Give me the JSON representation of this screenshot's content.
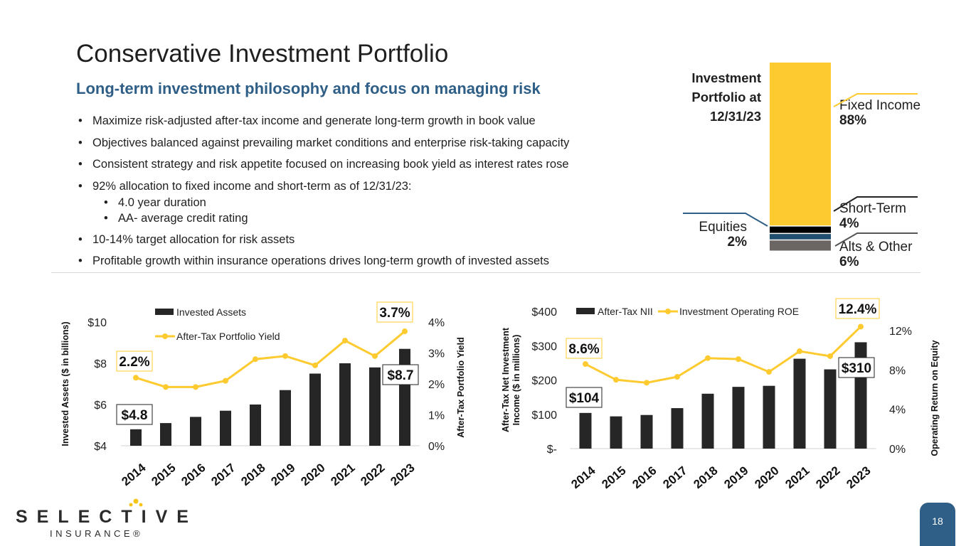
{
  "title": "Conservative Investment Portfolio",
  "subtitle": "Long-term investment philosophy and focus on managing risk",
  "bullets": [
    "Maximize risk-adjusted after-tax income and generate long-term growth in book value",
    "Objectives balanced against prevailing market conditions and enterprise risk-taking capacity",
    "Consistent strategy and risk appetite focused on increasing book yield as interest rates rose",
    "92% allocation to fixed income and short-term as of 12/31/23:",
    "10-14% target allocation for risk assets",
    "Profitable growth within insurance operations drives long-term growth of invested assets"
  ],
  "sub_bullets": [
    "4.0 year duration",
    "AA- average credit rating"
  ],
  "page_number": "18",
  "logo": {
    "line1": "SELECTIVE",
    "line2": "INSURANCE®",
    "dot_color": "#f5c518"
  },
  "colors": {
    "yellow": "#fdcb2f",
    "bar": "#262626",
    "blue": "#2f5f86",
    "equities": "#1f4e6e",
    "alts": "#6b6564"
  },
  "chart_data": [
    {
      "type": "stacked-bar",
      "title": "Investment Portfolio at 12/31/23",
      "segments": [
        {
          "name": "Fixed Income",
          "value": 88,
          "label": "88%",
          "color": "#fdcb2f"
        },
        {
          "name": "Short-Term",
          "value": 4,
          "label": "4%",
          "color": "#000000"
        },
        {
          "name": "Equities",
          "value": 2,
          "label": "2%",
          "color": "#1f4e6e"
        },
        {
          "name": "Alts & Other",
          "value": 6,
          "label": "6%",
          "color": "#6b6564"
        }
      ]
    },
    {
      "type": "bar+line",
      "categories": [
        "2014",
        "2015",
        "2016",
        "2017",
        "2018",
        "2019",
        "2020",
        "2021",
        "2022",
        "2023"
      ],
      "series": [
        {
          "name": "Invested Assets",
          "type": "bar",
          "axis": "left",
          "values": [
            4.8,
            5.1,
            5.4,
            5.7,
            6.0,
            6.7,
            7.5,
            8.0,
            7.8,
            8.7
          ]
        },
        {
          "name": "After-Tax Portfolio Yield",
          "type": "line",
          "axis": "right",
          "values": [
            2.2,
            1.9,
            1.9,
            2.1,
            2.8,
            2.9,
            2.6,
            3.4,
            2.9,
            3.7
          ]
        }
      ],
      "ylabel": "Invested Assets ($ in billions)",
      "y2label": "After-Tax Portfolio Yield",
      "ylim": [
        4,
        10
      ],
      "yticks": [
        "$4",
        "$6",
        "$8",
        "$10"
      ],
      "y2lim": [
        0,
        4
      ],
      "y2ticks": [
        "0%",
        "1%",
        "2%",
        "3%",
        "4%"
      ],
      "annotations": [
        "$4.8",
        "$8.7",
        "2.2%",
        "3.7%"
      ],
      "legend": "top"
    },
    {
      "type": "bar+line",
      "categories": [
        "2014",
        "2015",
        "2016",
        "2017",
        "2018",
        "2019",
        "2020",
        "2021",
        "2022",
        "2023"
      ],
      "series": [
        {
          "name": "After-Tax NII",
          "type": "bar",
          "axis": "left",
          "values": [
            104,
            94,
            98,
            118,
            160,
            180,
            183,
            262,
            231,
            310
          ]
        },
        {
          "name": "Investment Operating ROE",
          "type": "line",
          "axis": "right",
          "values": [
            8.6,
            7.0,
            6.7,
            7.3,
            9.2,
            9.1,
            7.8,
            9.9,
            9.4,
            12.4
          ]
        }
      ],
      "ylabel": "After-Tax Net Investment Income ($ in millions)",
      "y2label": "Operating Return on Equity",
      "ylim": [
        0,
        400
      ],
      "yticks": [
        "$-",
        "$100",
        "$200",
        "$300",
        "$400"
      ],
      "y2lim": [
        0,
        12
      ],
      "y2ticks": [
        "0%",
        "4%",
        "8%",
        "12%"
      ],
      "annotations": [
        "$104",
        "$310",
        "8.6%",
        "12.4%"
      ],
      "legend": "top"
    }
  ]
}
